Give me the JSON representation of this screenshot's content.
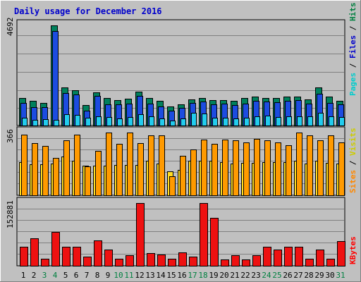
{
  "chart_data": {
    "type": "bar",
    "title": "Daily usage for December 2016",
    "days": [
      "1",
      "2",
      "3",
      "4",
      "5",
      "6",
      "7",
      "8",
      "9",
      "10",
      "11",
      "12",
      "13",
      "14",
      "15",
      "16",
      "17",
      "18",
      "19",
      "20",
      "21",
      "22",
      "23",
      "24",
      "25",
      "26",
      "27",
      "28",
      "29",
      "30",
      "31"
    ],
    "weekend_days": [
      "3",
      "4",
      "10",
      "11",
      "17",
      "18",
      "24",
      "25",
      "31"
    ],
    "panels": [
      {
        "id": "top",
        "ymax_label": "4692",
        "ylim": [
          0,
          4692
        ],
        "right_label": [
          {
            "text": "Pages",
            "color": "#00cccc"
          },
          {
            "text": " / ",
            "color": "#000000"
          },
          {
            "text": "Files",
            "color": "#0000cc"
          },
          {
            "text": " / ",
            "color": "#000000"
          },
          {
            "text": "Hits",
            "color": "#008040"
          }
        ],
        "series": [
          {
            "name": "Hits",
            "color": "#00805c",
            "values": [
              1290,
              1150,
              1070,
              4692,
              1790,
              1650,
              960,
              1540,
              1280,
              1190,
              1260,
              1580,
              1290,
              1160,
              880,
              1000,
              1210,
              1300,
              1200,
              1190,
              1170,
              1280,
              1350,
              1290,
              1280,
              1350,
              1350,
              1230,
              1790,
              1360,
              1150
            ]
          },
          {
            "name": "Files",
            "color": "#1c4ce0",
            "values": [
              1050,
              850,
              850,
              4430,
              1530,
              1460,
              700,
              1390,
              1000,
              980,
              1020,
              1390,
              1020,
              900,
              700,
              810,
              1060,
              1120,
              990,
              1010,
              950,
              1030,
              1140,
              1130,
              1080,
              1170,
              1180,
              1010,
              1500,
              1070,
              990
            ]
          },
          {
            "name": "Pages",
            "color": "#22ccee",
            "values": [
              370,
              270,
              290,
              280,
              540,
              480,
              350,
              420,
              410,
              330,
              380,
              530,
              430,
              330,
              240,
              330,
              580,
              570,
              360,
              360,
              320,
              360,
              430,
              450,
              410,
              420,
              440,
              420,
              580,
              420,
              390
            ]
          }
        ]
      },
      {
        "id": "mid",
        "ymax_label": "366",
        "ylim": [
          0,
          366
        ],
        "right_label": [
          {
            "text": "Sites",
            "color": "#ff8800"
          },
          {
            "text": " / ",
            "color": "#000000"
          },
          {
            "text": "Visits",
            "color": "#cccc00"
          }
        ],
        "series": [
          {
            "name": "Visits",
            "color": "#ffdd22",
            "values": [
              195,
              180,
              180,
              185,
              225,
              200,
              172,
              172,
              172,
              175,
              175,
              175,
              200,
              185,
              140,
              150,
              200,
              200,
              200,
              195,
              185,
              190,
              190,
              195,
              195,
              195,
              200,
              185,
              200,
              190,
              185
            ]
          },
          {
            "name": "Sites",
            "color": "#ff9a00",
            "values": [
              352,
              303,
              287,
              220,
              320,
              355,
              170,
              260,
              366,
              300,
              366,
              304,
              350,
              350,
              110,
              230,
              268,
              325,
              300,
              325,
              320,
              310,
              330,
              320,
              310,
              290,
              365,
              350,
              320,
              350,
              310
            ]
          }
        ]
      },
      {
        "id": "bot",
        "ymax_label": "152881",
        "ylim": [
          0,
          152881
        ],
        "right_label": [
          {
            "text": "KBytes",
            "color": "#ff0000"
          }
        ],
        "series": [
          {
            "name": "KBytes",
            "color": "#ee1111",
            "values": [
              46000,
              67000,
              18000,
              83000,
              46000,
              46000,
              23000,
              61000,
              40000,
              18000,
              26000,
              152881,
              31000,
              28000,
              18000,
              33000,
              23000,
              152881,
              117000,
              16000,
              25000,
              16000,
              26000,
              46000,
              40000,
              46000,
              46000,
              18000,
              40000,
              18000,
              60000
            ]
          }
        ]
      }
    ]
  }
}
